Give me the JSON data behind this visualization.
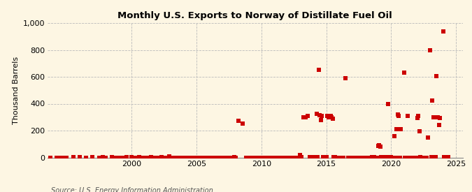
{
  "title": "Monthly U.S. Exports to Norway of Distillate Fuel Oil",
  "ylabel": "Thousand Barrels",
  "source": "Source: U.S. Energy Information Administration",
  "background_color": "#fdf6e3",
  "marker_color": "#cc0000",
  "marker_size": 5,
  "xlim": [
    1993.5,
    2025.5
  ],
  "ylim": [
    0,
    1000
  ],
  "yticks": [
    0,
    200,
    400,
    600,
    800,
    1000
  ],
  "xticks": [
    2000,
    2005,
    2010,
    2015,
    2020,
    2025
  ],
  "data_points": [
    [
      1993.75,
      0
    ],
    [
      1994.25,
      0
    ],
    [
      1994.5,
      0
    ],
    [
      1994.75,
      0
    ],
    [
      1995.0,
      0
    ],
    [
      1995.5,
      5
    ],
    [
      1996.0,
      5
    ],
    [
      1996.5,
      0
    ],
    [
      1997.0,
      5
    ],
    [
      1997.5,
      0
    ],
    [
      1997.8,
      5
    ],
    [
      1998.0,
      0
    ],
    [
      1998.5,
      5
    ],
    [
      1998.8,
      0
    ],
    [
      1999.0,
      0
    ],
    [
      1999.3,
      0
    ],
    [
      1999.6,
      5
    ],
    [
      2000.0,
      5
    ],
    [
      2000.3,
      0
    ],
    [
      2000.6,
      5
    ],
    [
      2000.9,
      0
    ],
    [
      2001.2,
      0
    ],
    [
      2001.5,
      5
    ],
    [
      2001.8,
      0
    ],
    [
      2002.0,
      0
    ],
    [
      2002.3,
      5
    ],
    [
      2002.6,
      0
    ],
    [
      2002.9,
      10
    ],
    [
      2003.0,
      0
    ],
    [
      2003.3,
      0
    ],
    [
      2003.6,
      0
    ],
    [
      2003.9,
      0
    ],
    [
      2004.2,
      0
    ],
    [
      2004.5,
      0
    ],
    [
      2004.8,
      0
    ],
    [
      2005.0,
      0
    ],
    [
      2005.3,
      0
    ],
    [
      2005.6,
      0
    ],
    [
      2005.9,
      0
    ],
    [
      2006.2,
      0
    ],
    [
      2006.5,
      0
    ],
    [
      2006.8,
      0
    ],
    [
      2007.0,
      0
    ],
    [
      2007.3,
      0
    ],
    [
      2007.6,
      0
    ],
    [
      2007.9,
      5
    ],
    [
      2008.0,
      0
    ],
    [
      2008.25,
      275
    ],
    [
      2008.58,
      250
    ],
    [
      2008.8,
      0
    ],
    [
      2009.0,
      0
    ],
    [
      2009.3,
      0
    ],
    [
      2009.6,
      0
    ],
    [
      2009.9,
      0
    ],
    [
      2010.0,
      0
    ],
    [
      2010.1,
      0
    ],
    [
      2010.3,
      0
    ],
    [
      2010.5,
      0
    ],
    [
      2010.7,
      0
    ],
    [
      2010.9,
      0
    ],
    [
      2011.0,
      0
    ],
    [
      2011.2,
      0
    ],
    [
      2011.4,
      0
    ],
    [
      2011.6,
      0
    ],
    [
      2011.8,
      0
    ],
    [
      2012.0,
      0
    ],
    [
      2012.2,
      0
    ],
    [
      2012.4,
      0
    ],
    [
      2012.6,
      0
    ],
    [
      2012.8,
      0
    ],
    [
      2013.0,
      20
    ],
    [
      2013.1,
      5
    ],
    [
      2013.25,
      300
    ],
    [
      2013.42,
      300
    ],
    [
      2013.58,
      310
    ],
    [
      2013.75,
      5
    ],
    [
      2013.9,
      0
    ],
    [
      2014.0,
      5
    ],
    [
      2014.1,
      5
    ],
    [
      2014.25,
      325
    ],
    [
      2014.33,
      5
    ],
    [
      2014.42,
      650
    ],
    [
      2014.5,
      315
    ],
    [
      2014.58,
      280
    ],
    [
      2014.67,
      310
    ],
    [
      2014.75,
      5
    ],
    [
      2014.9,
      5
    ],
    [
      2015.0,
      5
    ],
    [
      2015.08,
      310
    ],
    [
      2015.17,
      300
    ],
    [
      2015.25,
      300
    ],
    [
      2015.33,
      310
    ],
    [
      2015.42,
      300
    ],
    [
      2015.5,
      290
    ],
    [
      2015.58,
      5
    ],
    [
      2015.67,
      5
    ],
    [
      2015.75,
      0
    ],
    [
      2016.0,
      0
    ],
    [
      2016.1,
      0
    ],
    [
      2016.2,
      0
    ],
    [
      2016.3,
      0
    ],
    [
      2016.5,
      590
    ],
    [
      2016.7,
      0
    ],
    [
      2016.9,
      0
    ],
    [
      2017.0,
      0
    ],
    [
      2017.1,
      0
    ],
    [
      2017.2,
      0
    ],
    [
      2017.3,
      0
    ],
    [
      2017.5,
      0
    ],
    [
      2017.7,
      0
    ],
    [
      2017.9,
      0
    ],
    [
      2018.0,
      0
    ],
    [
      2018.1,
      0
    ],
    [
      2018.2,
      0
    ],
    [
      2018.3,
      0
    ],
    [
      2018.5,
      5
    ],
    [
      2018.7,
      5
    ],
    [
      2018.9,
      0
    ],
    [
      2019.0,
      85
    ],
    [
      2019.08,
      90
    ],
    [
      2019.17,
      80
    ],
    [
      2019.25,
      5
    ],
    [
      2019.4,
      0
    ],
    [
      2019.5,
      5
    ],
    [
      2019.6,
      5
    ],
    [
      2019.75,
      395
    ],
    [
      2019.83,
      0
    ],
    [
      2019.9,
      5
    ],
    [
      2020.0,
      5
    ],
    [
      2020.08,
      0
    ],
    [
      2020.17,
      0
    ],
    [
      2020.25,
      160
    ],
    [
      2020.33,
      0
    ],
    [
      2020.42,
      210
    ],
    [
      2020.5,
      320
    ],
    [
      2020.58,
      310
    ],
    [
      2020.67,
      0
    ],
    [
      2020.75,
      210
    ],
    [
      2021.0,
      630
    ],
    [
      2021.08,
      0
    ],
    [
      2021.17,
      0
    ],
    [
      2021.25,
      310
    ],
    [
      2021.5,
      0
    ],
    [
      2021.6,
      0
    ],
    [
      2021.7,
      0
    ],
    [
      2021.8,
      0
    ],
    [
      2021.9,
      0
    ],
    [
      2022.0,
      295
    ],
    [
      2022.08,
      310
    ],
    [
      2022.17,
      195
    ],
    [
      2022.25,
      5
    ],
    [
      2022.4,
      0
    ],
    [
      2022.5,
      0
    ],
    [
      2022.6,
      0
    ],
    [
      2022.7,
      0
    ],
    [
      2022.83,
      150
    ],
    [
      2023.0,
      800
    ],
    [
      2023.08,
      5
    ],
    [
      2023.17,
      425
    ],
    [
      2023.25,
      300
    ],
    [
      2023.33,
      5
    ],
    [
      2023.42,
      5
    ],
    [
      2023.5,
      605
    ],
    [
      2023.58,
      300
    ],
    [
      2023.67,
      240
    ],
    [
      2023.75,
      295
    ],
    [
      2024.0,
      940
    ],
    [
      2024.08,
      5
    ],
    [
      2024.17,
      5
    ],
    [
      2024.25,
      5
    ],
    [
      2024.42,
      5
    ]
  ]
}
